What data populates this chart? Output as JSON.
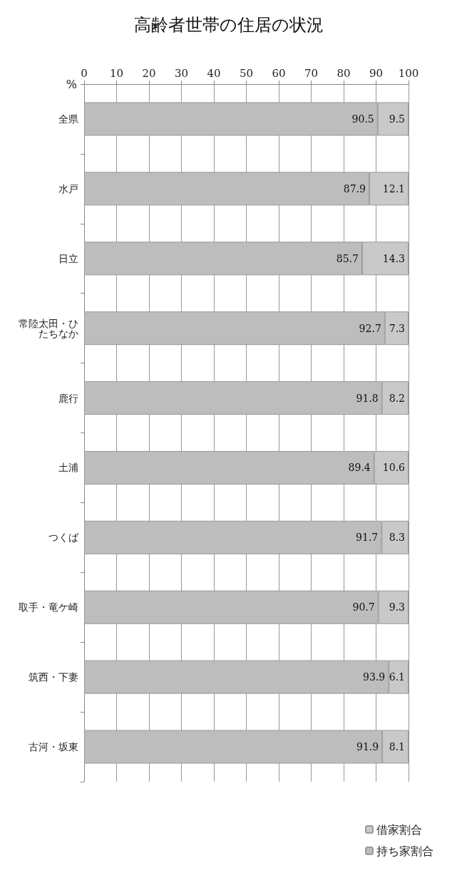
{
  "chart_data": {
    "type": "bar",
    "title": "高齢者世帯の住居の状況",
    "ylabel": "%",
    "categories": [
      "全県",
      "水戸",
      "日立",
      "常陸太田・ひたちなか",
      "鹿行",
      "土浦",
      "つくば",
      "取手・竜ケ崎",
      "筑西・下妻",
      "古河・坂東"
    ],
    "series": [
      {
        "name": "持ち家割合",
        "color": "#bdbdbd",
        "values": [
          90.5,
          87.9,
          85.7,
          92.7,
          91.8,
          89.4,
          91.7,
          90.7,
          93.9,
          91.9
        ]
      },
      {
        "name": "借家割合",
        "color": "#c9c9c9",
        "values": [
          9.5,
          12.1,
          14.3,
          7.3,
          8.2,
          10.6,
          8.3,
          9.3,
          6.1,
          8.1
        ]
      }
    ],
    "orientation": "horizontal",
    "stacked": true,
    "data_labels": true,
    "xlim": [
      0,
      100
    ],
    "xticks": [
      0,
      10,
      20,
      30,
      40,
      50,
      60,
      70,
      80,
      90,
      100
    ],
    "grid": "x",
    "legend": "bottom right"
  }
}
